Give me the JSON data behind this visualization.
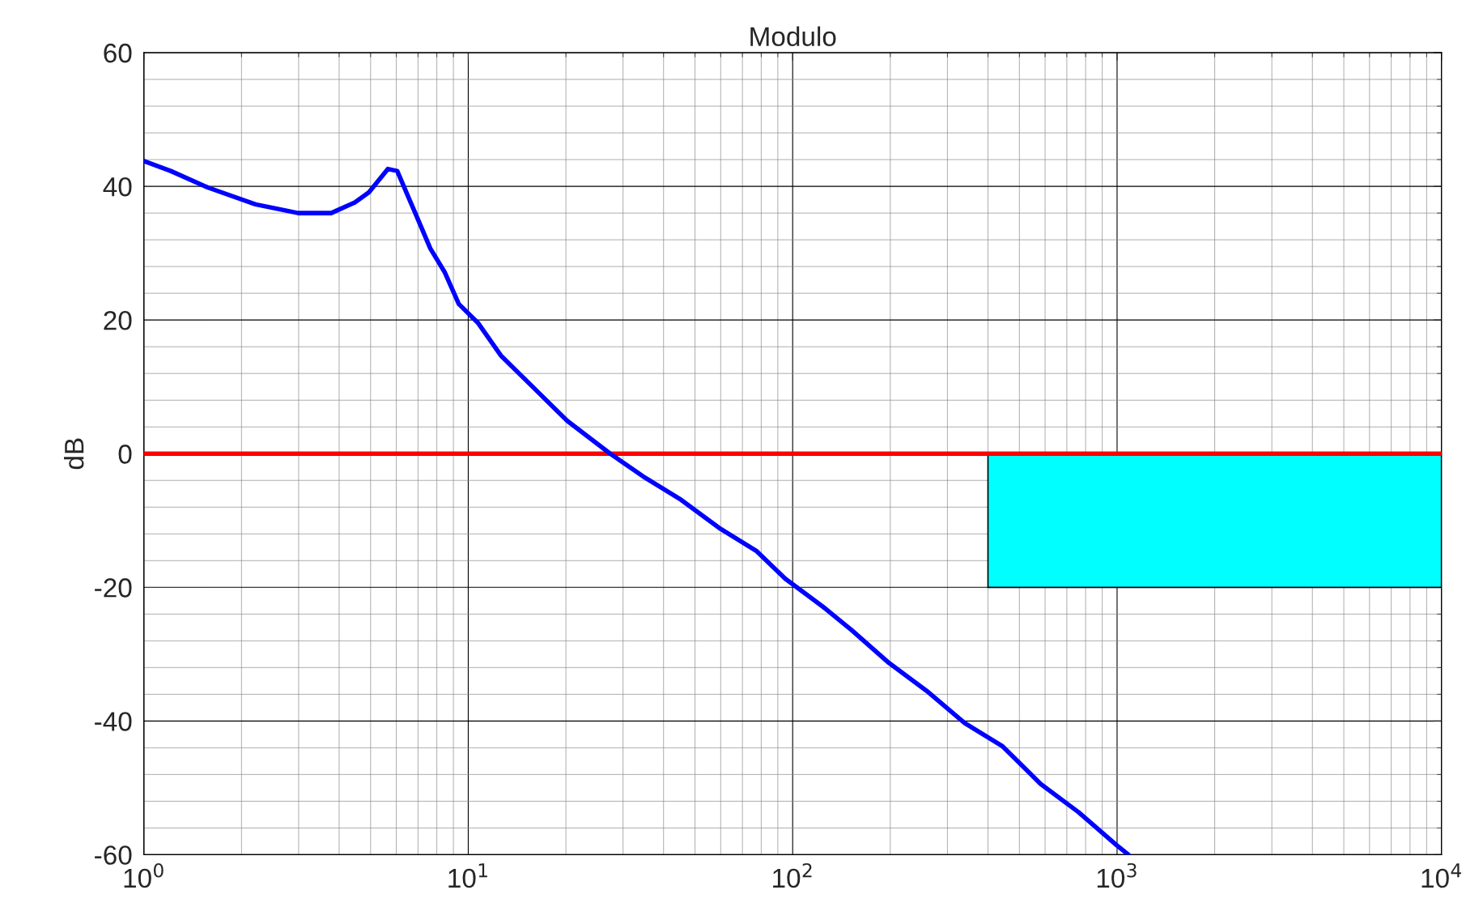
{
  "chart_data": {
    "type": "line",
    "title": "Modulo",
    "ylabel": "dB",
    "log": "x",
    "grid": true,
    "xlim": [
      1,
      10000
    ],
    "ylim": [
      -60,
      60
    ],
    "xticks": [
      {
        "value": 1,
        "label": "10$^{0}$"
      },
      {
        "value": 10,
        "label": "10$^{1}$"
      },
      {
        "value": 100,
        "label": "10$^{2}$"
      },
      {
        "value": 1000,
        "label": "10$^{3}$"
      },
      {
        "value": 10000,
        "label": "10$^{4}$"
      }
    ],
    "yticks": [
      -60,
      -40,
      -20,
      0,
      20,
      40,
      60
    ],
    "series": [
      {
        "type": "area",
        "color": "#00ffff",
        "x": [
          400,
          10000
        ],
        "values": [
          -20,
          -20
        ]
      },
      {
        "color": "#0000ff",
        "x": [
          1,
          1.21,
          1.58,
          2.21,
          2.99,
          3.78,
          4.47,
          4.94,
          5.65,
          6.04,
          6.92,
          7.64,
          8.45,
          9.35,
          10.7,
          12.6,
          16.5,
          20.2,
          27.4,
          34.6,
          45.3,
          59.3,
          77.5,
          94.8,
          124,
          152,
          198,
          259,
          339,
          444,
          581,
          759,
          993,
          1084
        ],
        "values": [
          43.8,
          42.3,
          39.8,
          37.3,
          36.0,
          36.0,
          37.6,
          39.1,
          42.6,
          42.3,
          35.6,
          30.7,
          27.2,
          22.4,
          19.6,
          14.7,
          9.1,
          4.9,
          0,
          -3.4,
          -6.9,
          -11.1,
          -14.6,
          -18.7,
          -22.9,
          -26.4,
          -31.3,
          -35.5,
          -40.3,
          -43.8,
          -49.4,
          -53.6,
          -58.5,
          -60
        ]
      }
    ],
    "ref_lines": [
      {
        "axis": "y",
        "value": 0,
        "color": "#ff0000"
      }
    ]
  }
}
